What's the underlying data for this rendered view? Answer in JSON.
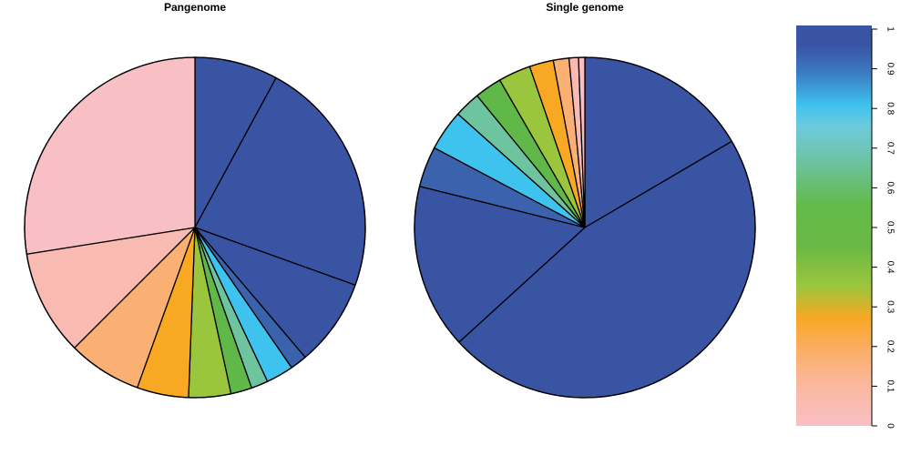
{
  "chart_data": [
    {
      "type": "pie",
      "title": "Pangenome",
      "start": "top",
      "direction": "clockwise",
      "slices": [
        {
          "value": 7.9,
          "color": "#3a54a4"
        },
        {
          "value": 22.6,
          "color": "#3a54a4"
        },
        {
          "value": 8.3,
          "color": "#3a54a4"
        },
        {
          "value": 1.6,
          "color": "#3b63ad"
        },
        {
          "value": 2.6,
          "color": "#3ec3ef"
        },
        {
          "value": 1.6,
          "color": "#6ec49f"
        },
        {
          "value": 2.0,
          "color": "#5fb847"
        },
        {
          "value": 4.0,
          "color": "#9ac63d"
        },
        {
          "value": 4.9,
          "color": "#f8a823"
        },
        {
          "value": 7.0,
          "color": "#fbb073"
        },
        {
          "value": 10.0,
          "color": "#f9bab1"
        },
        {
          "value": 27.5,
          "color": "#f8bfc5"
        }
      ]
    },
    {
      "type": "pie",
      "title": "Single genome",
      "start": "top",
      "direction": "clockwise",
      "slices": [
        {
          "value": 16.7,
          "color": "#3a54a4"
        },
        {
          "value": 47.1,
          "color": "#3a54a4"
        },
        {
          "value": 15.8,
          "color": "#3a54a4"
        },
        {
          "value": 3.9,
          "color": "#3b63ad"
        },
        {
          "value": 3.9,
          "color": "#3ec3ef"
        },
        {
          "value": 2.5,
          "color": "#6ec49f"
        },
        {
          "value": 2.6,
          "color": "#5fb847"
        },
        {
          "value": 3.1,
          "color": "#9ac63d"
        },
        {
          "value": 2.3,
          "color": "#f8a823"
        },
        {
          "value": 1.5,
          "color": "#fbb073"
        },
        {
          "value": 0.9,
          "color": "#f9bab1"
        },
        {
          "value": 0.6,
          "color": "#f8bfc5"
        }
      ]
    }
  ],
  "colorbar": {
    "range": [
      0,
      1
    ],
    "ticks": [
      "0",
      "0.1",
      "0.2",
      "0.3",
      "0.4",
      "0.5",
      "0.6",
      "0.7",
      "0.8",
      "0.9",
      "1"
    ],
    "stops": [
      {
        "value": 0.0,
        "color": "#f8bfc5"
      },
      {
        "value": 0.1,
        "color": "#fbb8a0"
      },
      {
        "value": 0.2,
        "color": "#fbad5e"
      },
      {
        "value": 0.27,
        "color": "#f8a823"
      },
      {
        "value": 0.35,
        "color": "#9ac63d"
      },
      {
        "value": 0.45,
        "color": "#6ab844"
      },
      {
        "value": 0.55,
        "color": "#64ba49"
      },
      {
        "value": 0.68,
        "color": "#6ec4b0"
      },
      {
        "value": 0.75,
        "color": "#6dcadf"
      },
      {
        "value": 0.8,
        "color": "#3ec3ef"
      },
      {
        "value": 0.88,
        "color": "#3a7cc2"
      },
      {
        "value": 0.95,
        "color": "#3a54a4"
      },
      {
        "value": 1.0,
        "color": "#3a54a4"
      }
    ]
  }
}
